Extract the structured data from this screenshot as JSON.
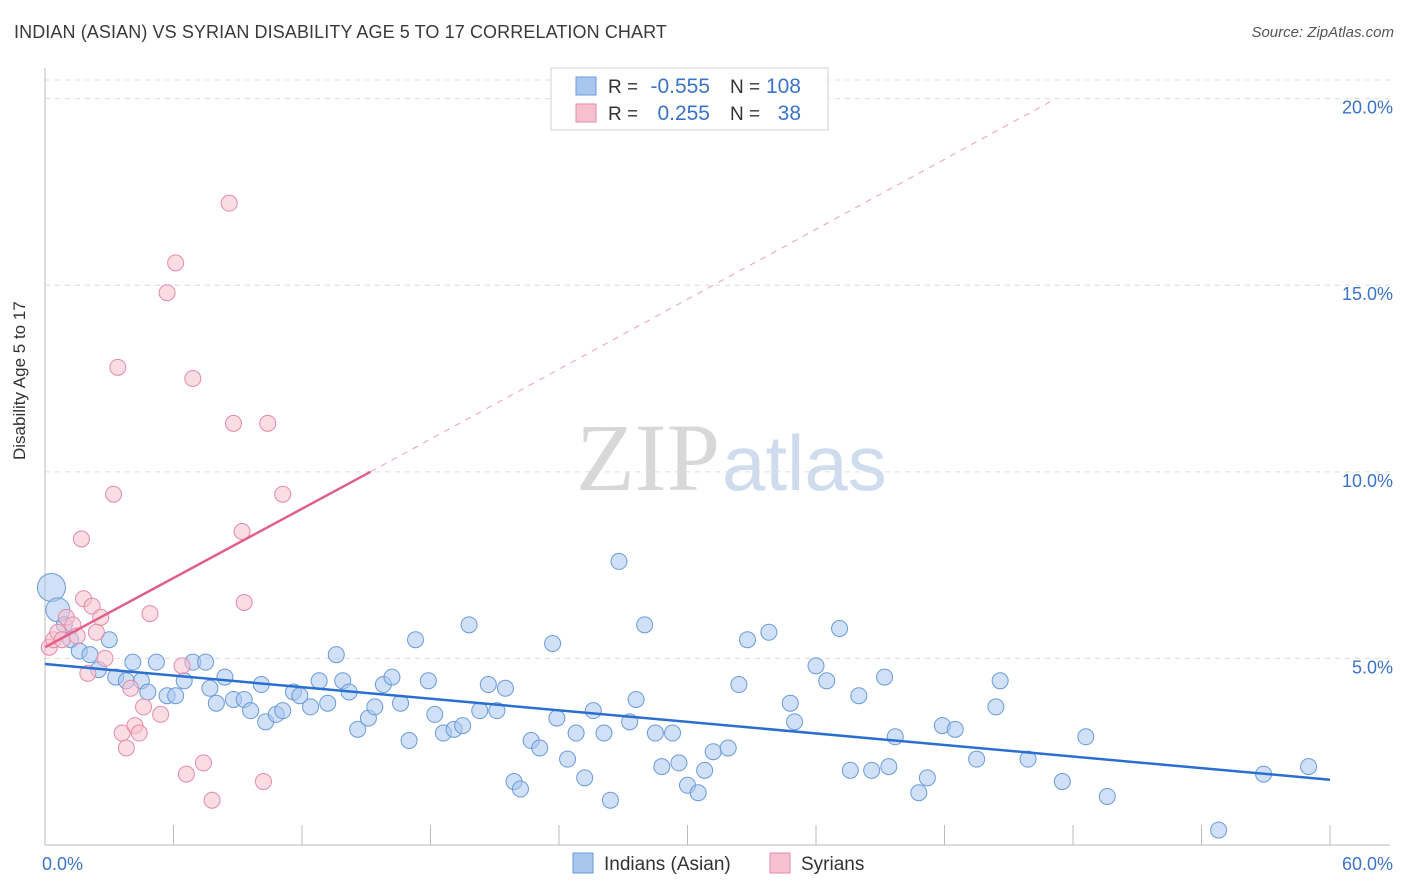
{
  "header": {
    "title": "INDIAN (ASIAN) VS SYRIAN DISABILITY AGE 5 TO 17 CORRELATION CHART",
    "source": "Source: ZipAtlas.com"
  },
  "watermark": {
    "zip": "ZIP",
    "atlas": "atlas"
  },
  "colors": {
    "blue_fill": "#a9c7ee",
    "blue_stroke": "#6a9bd8",
    "blue_line": "#2a6fcf",
    "pink_fill": "#f6c0d0",
    "pink_stroke": "#e58aa7",
    "pink_line": "#e0608a",
    "axis_text": "#3b73c8"
  },
  "chart_data": {
    "type": "scatter",
    "title": "INDIAN (ASIAN) VS SYRIAN DISABILITY AGE 5 TO 17 CORRELATION CHART",
    "xlabel": "",
    "ylabel": "Disability Age 5 to 17",
    "xlim": [
      0,
      60
    ],
    "ylim": [
      0,
      20.5
    ],
    "x_tick_labels": [
      "0.0%",
      "60.0%"
    ],
    "y_ticks": [
      5,
      10,
      15,
      20
    ],
    "y_tick_labels": [
      "5.0%",
      "10.0%",
      "15.0%",
      "20.0%"
    ],
    "grid": true,
    "legend": {
      "position": "top-center",
      "rows": [
        {
          "r_label": "R =",
          "r_value": "-0.555",
          "n_label": "N =",
          "n_value": "108"
        },
        {
          "r_label": "R =",
          "r_value": "0.255",
          "n_label": "N =",
          "n_value": "38"
        }
      ]
    },
    "series": [
      {
        "name": "Indians (Asian)",
        "color": "#a9c7ee",
        "trend": {
          "x": [
            0,
            60
          ],
          "y": [
            4.85,
            1.75
          ]
        },
        "points": [
          [
            0.3,
            6.9
          ],
          [
            0.6,
            6.3
          ],
          [
            0.9,
            5.9
          ],
          [
            1.2,
            5.5
          ],
          [
            1.6,
            5.2
          ],
          [
            2.1,
            5.1
          ],
          [
            2.5,
            4.7
          ],
          [
            3.0,
            5.5
          ],
          [
            3.3,
            4.5
          ],
          [
            3.8,
            4.4
          ],
          [
            4.1,
            4.9
          ],
          [
            4.5,
            4.4
          ],
          [
            4.8,
            4.1
          ],
          [
            5.2,
            4.9
          ],
          [
            5.7,
            4.0
          ],
          [
            6.1,
            4.0
          ],
          [
            6.5,
            4.4
          ],
          [
            6.9,
            4.9
          ],
          [
            7.5,
            4.9
          ],
          [
            7.7,
            4.2
          ],
          [
            8.0,
            3.8
          ],
          [
            8.4,
            4.5
          ],
          [
            8.8,
            3.9
          ],
          [
            9.3,
            3.9
          ],
          [
            9.6,
            3.6
          ],
          [
            10.1,
            4.3
          ],
          [
            10.3,
            3.3
          ],
          [
            10.8,
            3.5
          ],
          [
            11.1,
            3.6
          ],
          [
            11.6,
            4.1
          ],
          [
            11.9,
            4.0
          ],
          [
            12.4,
            3.7
          ],
          [
            12.8,
            4.4
          ],
          [
            13.2,
            3.8
          ],
          [
            13.6,
            5.1
          ],
          [
            13.9,
            4.4
          ],
          [
            14.2,
            4.1
          ],
          [
            14.6,
            3.1
          ],
          [
            15.1,
            3.4
          ],
          [
            15.4,
            3.7
          ],
          [
            15.8,
            4.3
          ],
          [
            16.2,
            4.5
          ],
          [
            16.6,
            3.8
          ],
          [
            17.0,
            2.8
          ],
          [
            17.3,
            5.5
          ],
          [
            17.9,
            4.4
          ],
          [
            18.2,
            3.5
          ],
          [
            18.6,
            3.0
          ],
          [
            19.1,
            3.1
          ],
          [
            19.5,
            3.2
          ],
          [
            19.8,
            5.9
          ],
          [
            20.3,
            3.6
          ],
          [
            20.7,
            4.3
          ],
          [
            21.1,
            3.6
          ],
          [
            21.5,
            4.2
          ],
          [
            21.9,
            1.7
          ],
          [
            22.2,
            1.5
          ],
          [
            22.7,
            2.8
          ],
          [
            23.1,
            2.6
          ],
          [
            23.7,
            5.4
          ],
          [
            23.9,
            3.4
          ],
          [
            24.4,
            2.3
          ],
          [
            24.8,
            3.0
          ],
          [
            25.2,
            1.8
          ],
          [
            25.6,
            3.6
          ],
          [
            26.1,
            3.0
          ],
          [
            26.4,
            1.2
          ],
          [
            26.8,
            7.6
          ],
          [
            27.3,
            3.3
          ],
          [
            27.6,
            3.9
          ],
          [
            28.0,
            5.9
          ],
          [
            28.5,
            3.0
          ],
          [
            28.8,
            2.1
          ],
          [
            29.3,
            3.0
          ],
          [
            29.6,
            2.2
          ],
          [
            30.0,
            1.6
          ],
          [
            30.5,
            1.4
          ],
          [
            30.8,
            2.0
          ],
          [
            31.2,
            2.5
          ],
          [
            31.9,
            2.6
          ],
          [
            32.4,
            4.3
          ],
          [
            32.8,
            5.5
          ],
          [
            33.8,
            5.7
          ],
          [
            34.8,
            3.8
          ],
          [
            35.0,
            3.3
          ],
          [
            36.0,
            4.8
          ],
          [
            36.5,
            4.4
          ],
          [
            37.1,
            5.8
          ],
          [
            37.6,
            2.0
          ],
          [
            38.0,
            4.0
          ],
          [
            38.6,
            2.0
          ],
          [
            39.2,
            4.5
          ],
          [
            39.4,
            2.1
          ],
          [
            39.7,
            2.9
          ],
          [
            40.8,
            1.4
          ],
          [
            41.2,
            1.8
          ],
          [
            41.9,
            3.2
          ],
          [
            42.5,
            3.1
          ],
          [
            43.5,
            2.3
          ],
          [
            44.4,
            3.7
          ],
          [
            44.6,
            4.4
          ],
          [
            45.9,
            2.3
          ],
          [
            47.5,
            1.7
          ],
          [
            48.6,
            2.9
          ],
          [
            49.6,
            1.3
          ],
          [
            54.8,
            0.4
          ],
          [
            56.9,
            1.9
          ],
          [
            59.0,
            2.1
          ]
        ]
      },
      {
        "name": "Syrians",
        "color": "#f6c0d0",
        "trend": {
          "x": [
            0,
            15.2
          ],
          "y": [
            5.3,
            10.0
          ],
          "dashed_x": [
            15.2,
            47.2
          ],
          "dashed_y": [
            10.0,
            20.0
          ]
        },
        "points": [
          [
            0.2,
            5.3
          ],
          [
            0.4,
            5.5
          ],
          [
            0.6,
            5.7
          ],
          [
            0.8,
            5.5
          ],
          [
            1.0,
            6.1
          ],
          [
            1.3,
            5.9
          ],
          [
            1.5,
            5.6
          ],
          [
            1.7,
            8.2
          ],
          [
            1.8,
            6.6
          ],
          [
            2.0,
            4.6
          ],
          [
            2.2,
            6.4
          ],
          [
            2.4,
            5.7
          ],
          [
            2.6,
            6.1
          ],
          [
            2.8,
            5.0
          ],
          [
            3.2,
            9.4
          ],
          [
            3.4,
            12.8
          ],
          [
            3.6,
            3.0
          ],
          [
            3.8,
            2.6
          ],
          [
            4.0,
            4.2
          ],
          [
            4.2,
            3.2
          ],
          [
            4.4,
            3.0
          ],
          [
            4.6,
            3.7
          ],
          [
            4.9,
            6.2
          ],
          [
            5.4,
            3.5
          ],
          [
            5.7,
            14.8
          ],
          [
            6.1,
            15.6
          ],
          [
            6.4,
            4.8
          ],
          [
            6.6,
            1.9
          ],
          [
            6.9,
            12.5
          ],
          [
            7.4,
            2.2
          ],
          [
            7.8,
            1.2
          ],
          [
            8.6,
            17.2
          ],
          [
            8.8,
            11.3
          ],
          [
            9.2,
            8.4
          ],
          [
            9.3,
            6.5
          ],
          [
            10.4,
            11.3
          ],
          [
            10.2,
            1.7
          ],
          [
            11.1,
            9.4
          ]
        ]
      }
    ]
  },
  "bottom_legend": {
    "items": [
      "Indians (Asian)",
      "Syrians"
    ]
  }
}
